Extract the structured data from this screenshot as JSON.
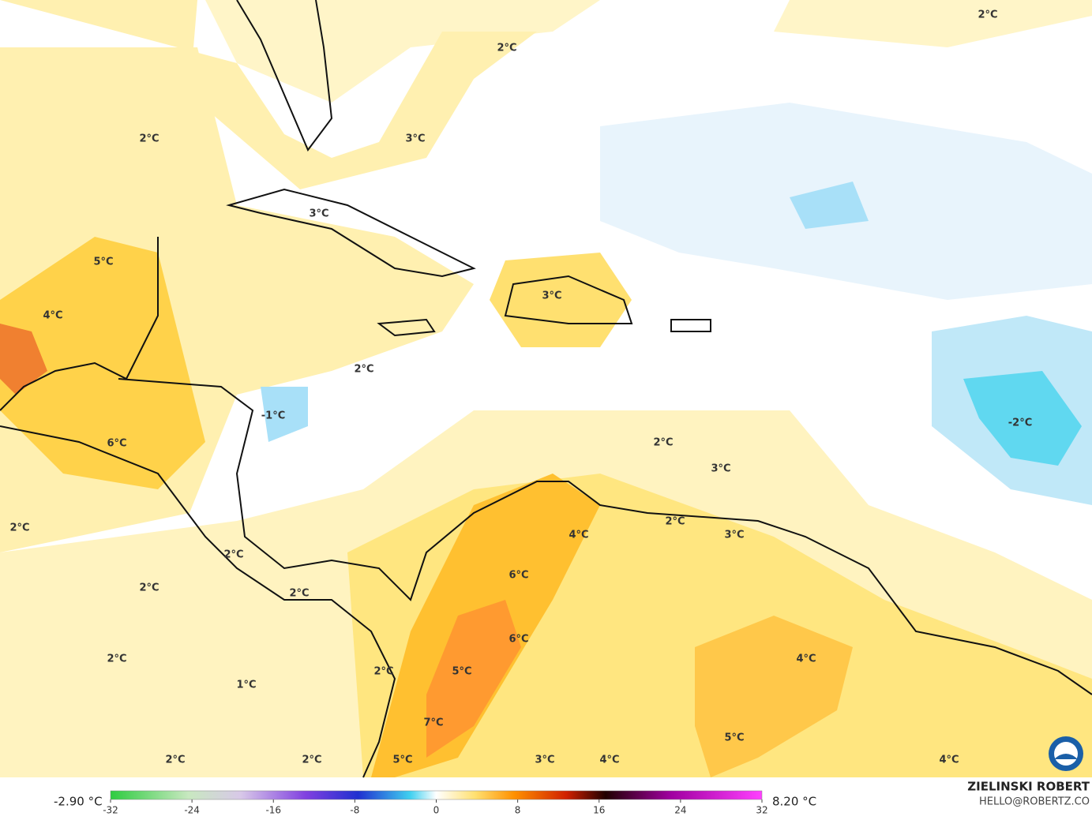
{
  "map": {
    "labels": [
      "2°C",
      "2°C",
      "2°C",
      "3°C",
      "3°C",
      "5°C",
      "4°C",
      "3°C",
      "2°C",
      "-1°C",
      "6°C",
      "2°C",
      "3°C",
      "-2°C",
      "2°C",
      "3°C",
      "4°C",
      "2°C",
      "2°C",
      "6°C",
      "2°C",
      "2°C",
      "6°C",
      "2°C",
      "4°C",
      "5°C",
      "2°C",
      "1°C",
      "7°C",
      "5°C",
      "2°C",
      "2°C",
      "3°C",
      "4°C",
      "4°C",
      "5°C"
    ]
  },
  "colorbar": {
    "min_label": "-2.90 °C",
    "max_label": "8.20 °C",
    "lim": [
      -32,
      32
    ],
    "ticks": [
      -32,
      -24,
      -16,
      -8,
      0,
      8,
      16,
      24,
      32
    ]
  },
  "credits": {
    "name": "ZIELINSKI ROBERT",
    "email": "HELLO@ROBERTZ.CO"
  }
}
